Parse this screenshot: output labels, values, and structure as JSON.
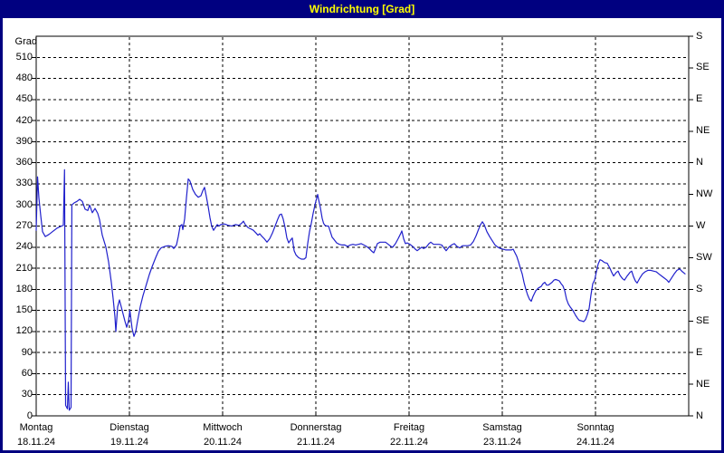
{
  "window": {
    "title": "Windrichtung [Grad]"
  },
  "colors": {
    "frame": "#000080",
    "title_text": "#ffff00",
    "background": "#ffffff",
    "grid": "#000000",
    "text": "#000000",
    "line": "#2020cc"
  },
  "chart_data": {
    "type": "line",
    "title": "Windrichtung [Grad]",
    "y_axis": {
      "label": "Grad",
      "min": 0,
      "max": 540,
      "tick_step": 30,
      "ticks": [
        0,
        30,
        60,
        90,
        120,
        150,
        180,
        210,
        240,
        270,
        300,
        330,
        360,
        390,
        420,
        450,
        480,
        510
      ]
    },
    "y2_axis": {
      "ticks": [
        {
          "value": 540,
          "label": "S"
        },
        {
          "value": 495,
          "label": "SE"
        },
        {
          "value": 450,
          "label": "E"
        },
        {
          "value": 405,
          "label": "NE"
        },
        {
          "value": 360,
          "label": "N"
        },
        {
          "value": 315,
          "label": "NW"
        },
        {
          "value": 270,
          "label": "W"
        },
        {
          "value": 225,
          "label": "SW"
        },
        {
          "value": 180,
          "label": "S"
        },
        {
          "value": 135,
          "label": "SE"
        },
        {
          "value": 90,
          "label": "E"
        },
        {
          "value": 45,
          "label": "NE"
        },
        {
          "value": 0,
          "label": "N"
        }
      ]
    },
    "x_axis": {
      "range_days": [
        0,
        7
      ],
      "days": [
        {
          "name": "Montag",
          "date": "18.11.24"
        },
        {
          "name": "Dienstag",
          "date": "19.11.24"
        },
        {
          "name": "Mittwoch",
          "date": "20.11.24"
        },
        {
          "name": "Donnerstag",
          "date": "21.11.24"
        },
        {
          "name": "Freitag",
          "date": "22.11.24"
        },
        {
          "name": "Samstag",
          "date": "23.11.24"
        },
        {
          "name": "Sonntag",
          "date": "24.11.24"
        }
      ]
    },
    "grid": {
      "h_values": [
        30,
        60,
        90,
        120,
        150,
        180,
        210,
        240,
        270,
        300,
        330,
        360,
        390,
        420,
        450,
        480,
        510
      ],
      "v_day_boundaries": [
        1,
        2,
        3,
        4,
        5,
        6
      ]
    },
    "legend": "none",
    "series": [
      {
        "name": "Windrichtung",
        "unit": "Grad",
        "color": "#2020cc",
        "points": [
          [
            0.0,
            264
          ],
          [
            0.015,
            340
          ],
          [
            0.029,
            310
          ],
          [
            0.049,
            285
          ],
          [
            0.068,
            262
          ],
          [
            0.097,
            255
          ],
          [
            0.136,
            258
          ],
          [
            0.175,
            262
          ],
          [
            0.223,
            267
          ],
          [
            0.272,
            270
          ],
          [
            0.291,
            271
          ],
          [
            0.304,
            350
          ],
          [
            0.316,
            15
          ],
          [
            0.335,
            10
          ],
          [
            0.345,
            48
          ],
          [
            0.354,
            8
          ],
          [
            0.374,
            12
          ],
          [
            0.383,
            300
          ],
          [
            0.408,
            303
          ],
          [
            0.437,
            305
          ],
          [
            0.466,
            308
          ],
          [
            0.495,
            305
          ],
          [
            0.524,
            294
          ],
          [
            0.553,
            292
          ],
          [
            0.573,
            300
          ],
          [
            0.602,
            289
          ],
          [
            0.631,
            295
          ],
          [
            0.66,
            288
          ],
          [
            0.68,
            279
          ],
          [
            0.709,
            257
          ],
          [
            0.748,
            240
          ],
          [
            0.777,
            219
          ],
          [
            0.806,
            190
          ],
          [
            0.825,
            167
          ],
          [
            0.845,
            141
          ],
          [
            0.854,
            120
          ],
          [
            0.874,
            155
          ],
          [
            0.893,
            165
          ],
          [
            0.922,
            150
          ],
          [
            0.951,
            135
          ],
          [
            0.971,
            126
          ],
          [
            0.99,
            135
          ],
          [
            1.005,
            150
          ],
          [
            1.029,
            124
          ],
          [
            1.049,
            113
          ],
          [
            1.068,
            120
          ],
          [
            1.087,
            135
          ],
          [
            1.117,
            156
          ],
          [
            1.146,
            171
          ],
          [
            1.184,
            188
          ],
          [
            1.214,
            201
          ],
          [
            1.243,
            212
          ],
          [
            1.282,
            225
          ],
          [
            1.311,
            234
          ],
          [
            1.34,
            239
          ],
          [
            1.379,
            241
          ],
          [
            1.417,
            242
          ],
          [
            1.456,
            241
          ],
          [
            1.476,
            238
          ],
          [
            1.505,
            243
          ],
          [
            1.524,
            255
          ],
          [
            1.544,
            270
          ],
          [
            1.563,
            272
          ],
          [
            1.573,
            265
          ],
          [
            1.592,
            280
          ],
          [
            1.612,
            310
          ],
          [
            1.631,
            337
          ],
          [
            1.65,
            334
          ],
          [
            1.68,
            322
          ],
          [
            1.709,
            315
          ],
          [
            1.738,
            311
          ],
          [
            1.767,
            313
          ],
          [
            1.786,
            320
          ],
          [
            1.806,
            325
          ],
          [
            1.825,
            312
          ],
          [
            1.845,
            298
          ],
          [
            1.864,
            282
          ],
          [
            1.883,
            270
          ],
          [
            1.903,
            264
          ],
          [
            1.922,
            268
          ],
          [
            1.942,
            272
          ],
          [
            1.961,
            270
          ],
          [
            1.981,
            272
          ],
          [
            2.019,
            273
          ],
          [
            2.058,
            271
          ],
          [
            2.097,
            270
          ],
          [
            2.136,
            272
          ],
          [
            2.175,
            271
          ],
          [
            2.204,
            274
          ],
          [
            2.223,
            277
          ],
          [
            2.243,
            272
          ],
          [
            2.272,
            268
          ],
          [
            2.301,
            266
          ],
          [
            2.33,
            264
          ],
          [
            2.359,
            260
          ],
          [
            2.379,
            257
          ],
          [
            2.398,
            259
          ],
          [
            2.417,
            256
          ],
          [
            2.447,
            252
          ],
          [
            2.476,
            247
          ],
          [
            2.505,
            252
          ],
          [
            2.534,
            260
          ],
          [
            2.563,
            270
          ],
          [
            2.592,
            280
          ],
          [
            2.612,
            286
          ],
          [
            2.631,
            287
          ],
          [
            2.65,
            280
          ],
          [
            2.67,
            268
          ],
          [
            2.689,
            253
          ],
          [
            2.709,
            246
          ],
          [
            2.728,
            250
          ],
          [
            2.748,
            253
          ],
          [
            2.767,
            235
          ],
          [
            2.786,
            229
          ],
          [
            2.816,
            225
          ],
          [
            2.845,
            223
          ],
          [
            2.874,
            223
          ],
          [
            2.893,
            225
          ],
          [
            2.913,
            245
          ],
          [
            2.932,
            262
          ],
          [
            2.951,
            274
          ],
          [
            2.971,
            288
          ],
          [
            2.99,
            300
          ],
          [
            3.01,
            310
          ],
          [
            3.019,
            315
          ],
          [
            3.029,
            308
          ],
          [
            3.049,
            296
          ],
          [
            3.068,
            281
          ],
          [
            3.083,
            274
          ],
          [
            3.097,
            271
          ],
          [
            3.117,
            270
          ],
          [
            3.136,
            270
          ],
          [
            3.155,
            262
          ],
          [
            3.175,
            254
          ],
          [
            3.194,
            251
          ],
          [
            3.223,
            246
          ],
          [
            3.252,
            244
          ],
          [
            3.282,
            243
          ],
          [
            3.311,
            243
          ],
          [
            3.34,
            241
          ],
          [
            3.369,
            243
          ],
          [
            3.398,
            244
          ],
          [
            3.427,
            243
          ],
          [
            3.456,
            244
          ],
          [
            3.485,
            245
          ],
          [
            3.515,
            243
          ],
          [
            3.544,
            241
          ],
          [
            3.573,
            238
          ],
          [
            3.602,
            234
          ],
          [
            3.621,
            232
          ],
          [
            3.641,
            238
          ],
          [
            3.66,
            245
          ],
          [
            3.689,
            247
          ],
          [
            3.718,
            247
          ],
          [
            3.748,
            247
          ],
          [
            3.777,
            244
          ],
          [
            3.806,
            241
          ],
          [
            3.825,
            240
          ],
          [
            3.854,
            245
          ],
          [
            3.883,
            252
          ],
          [
            3.913,
            260
          ],
          [
            3.922,
            263
          ],
          [
            3.942,
            252
          ],
          [
            3.961,
            245
          ],
          [
            3.981,
            246
          ],
          [
            4.01,
            244
          ],
          [
            4.039,
            241
          ],
          [
            4.068,
            237
          ],
          [
            4.087,
            235
          ],
          [
            4.117,
            238
          ],
          [
            4.136,
            240
          ],
          [
            4.155,
            238
          ],
          [
            4.184,
            240
          ],
          [
            4.214,
            245
          ],
          [
            4.233,
            247
          ],
          [
            4.262,
            244
          ],
          [
            4.291,
            244
          ],
          [
            4.32,
            244
          ],
          [
            4.35,
            243
          ],
          [
            4.379,
            238
          ],
          [
            4.398,
            235
          ],
          [
            4.427,
            240
          ],
          [
            4.456,
            243
          ],
          [
            4.485,
            245
          ],
          [
            4.515,
            241
          ],
          [
            4.544,
            239
          ],
          [
            4.573,
            242
          ],
          [
            4.602,
            242
          ],
          [
            4.631,
            242
          ],
          [
            4.66,
            243
          ],
          [
            4.689,
            248
          ],
          [
            4.718,
            256
          ],
          [
            4.748,
            266
          ],
          [
            4.767,
            272
          ],
          [
            4.786,
            276
          ],
          [
            4.806,
            272
          ],
          [
            4.835,
            262
          ],
          [
            4.864,
            255
          ],
          [
            4.893,
            249
          ],
          [
            4.922,
            243
          ],
          [
            4.951,
            240
          ],
          [
            4.981,
            238
          ],
          [
            5.01,
            237
          ],
          [
            5.039,
            236
          ],
          [
            5.068,
            236
          ],
          [
            5.097,
            236
          ],
          [
            5.117,
            237
          ],
          [
            5.136,
            232
          ],
          [
            5.155,
            227
          ],
          [
            5.175,
            219
          ],
          [
            5.194,
            210
          ],
          [
            5.214,
            202
          ],
          [
            5.233,
            190
          ],
          [
            5.252,
            180
          ],
          [
            5.272,
            172
          ],
          [
            5.291,
            166
          ],
          [
            5.311,
            163
          ],
          [
            5.33,
            170
          ],
          [
            5.359,
            178
          ],
          [
            5.388,
            182
          ],
          [
            5.417,
            184
          ],
          [
            5.437,
            188
          ],
          [
            5.456,
            190
          ],
          [
            5.476,
            186
          ],
          [
            5.495,
            186
          ],
          [
            5.515,
            188
          ],
          [
            5.534,
            190
          ],
          [
            5.553,
            193
          ],
          [
            5.573,
            194
          ],
          [
            5.592,
            193
          ],
          [
            5.612,
            192
          ],
          [
            5.631,
            188
          ],
          [
            5.65,
            185
          ],
          [
            5.67,
            178
          ],
          [
            5.689,
            166
          ],
          [
            5.709,
            159
          ],
          [
            5.728,
            155
          ],
          [
            5.757,
            150
          ],
          [
            5.786,
            143
          ],
          [
            5.806,
            139
          ],
          [
            5.825,
            136
          ],
          [
            5.854,
            135
          ],
          [
            5.874,
            134
          ],
          [
            5.893,
            137
          ],
          [
            5.913,
            144
          ],
          [
            5.932,
            153
          ],
          [
            5.951,
            172
          ],
          [
            5.971,
            188
          ],
          [
            5.99,
            193
          ],
          [
            6.01,
            205
          ],
          [
            6.029,
            216
          ],
          [
            6.049,
            222
          ],
          [
            6.068,
            221
          ],
          [
            6.097,
            218
          ],
          [
            6.126,
            217
          ],
          [
            6.155,
            210
          ],
          [
            6.175,
            204
          ],
          [
            6.194,
            199
          ],
          [
            6.223,
            204
          ],
          [
            6.243,
            206
          ],
          [
            6.262,
            200
          ],
          [
            6.291,
            195
          ],
          [
            6.311,
            193
          ],
          [
            6.34,
            199
          ],
          [
            6.369,
            204
          ],
          [
            6.388,
            206
          ],
          [
            6.408,
            198
          ],
          [
            6.427,
            192
          ],
          [
            6.447,
            189
          ],
          [
            6.476,
            196
          ],
          [
            6.505,
            202
          ],
          [
            6.534,
            205
          ],
          [
            6.563,
            207
          ],
          [
            6.592,
            207
          ],
          [
            6.621,
            206
          ],
          [
            6.65,
            205
          ],
          [
            6.68,
            202
          ],
          [
            6.709,
            199
          ],
          [
            6.738,
            196
          ],
          [
            6.767,
            193
          ],
          [
            6.786,
            190
          ],
          [
            6.816,
            196
          ],
          [
            6.845,
            202
          ],
          [
            6.874,
            207
          ],
          [
            6.903,
            209
          ],
          [
            6.932,
            205
          ],
          [
            6.961,
            202
          ]
        ]
      }
    ]
  }
}
